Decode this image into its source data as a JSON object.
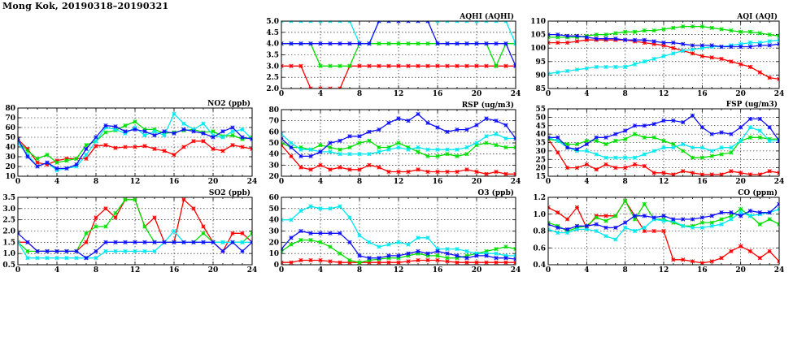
{
  "page": {
    "title": "Mong Kok, 20190318–20190321"
  },
  "series_colors": [
    "#ff0000",
    "#00e000",
    "#00e8f0",
    "#1010ff"
  ],
  "chart_data": [
    {
      "id": "aqhi",
      "type": "line",
      "title": "AQHI (AQHI)",
      "xlim": [
        0,
        24
      ],
      "ylim": [
        2.0,
        5.0
      ],
      "xticks": [
        "0",
        "4",
        "8",
        "12",
        "16",
        "20",
        "24"
      ],
      "yticks": [
        "2.0",
        "2.5",
        "3.0",
        "3.5",
        "4.0",
        "4.5",
        "5.0"
      ],
      "series": [
        {
          "name": "red",
          "values": [
            3,
            3,
            3,
            2,
            2,
            2,
            2,
            3,
            3,
            3,
            3,
            3,
            3,
            3,
            3,
            3,
            3,
            3,
            3,
            3,
            3,
            3,
            3,
            3,
            3
          ]
        },
        {
          "name": "green",
          "values": [
            4,
            4,
            4,
            4,
            3,
            3,
            3,
            3,
            4,
            4,
            4,
            4,
            4,
            4,
            4,
            4,
            4,
            4,
            4,
            4,
            4,
            4,
            3,
            4,
            4
          ]
        },
        {
          "name": "cyan",
          "values": [
            5,
            5,
            5,
            5,
            5,
            5,
            5,
            5,
            4,
            4,
            5,
            5,
            5,
            5,
            5,
            5,
            5,
            5,
            5,
            5,
            5,
            5,
            5,
            5,
            4
          ]
        },
        {
          "name": "blue",
          "values": [
            4,
            4,
            4,
            4,
            4,
            4,
            4,
            4,
            4,
            4,
            5,
            5,
            5,
            5,
            5,
            5,
            4,
            4,
            4,
            4,
            4,
            4,
            4,
            4,
            3
          ]
        }
      ]
    },
    {
      "id": "aqi",
      "type": "line",
      "title": "AQI (AQI)",
      "xlim": [
        0,
        24
      ],
      "ylim": [
        85,
        110
      ],
      "xticks": [
        "0",
        "4",
        "8",
        "12",
        "16",
        "20",
        "24"
      ],
      "yticks": [
        "85",
        "90",
        "95",
        "100",
        "105",
        "110"
      ],
      "series": [
        {
          "name": "red",
          "values": [
            102,
            102,
            102,
            102.5,
            103,
            103,
            103,
            103,
            103,
            102.5,
            102,
            101.5,
            101,
            100,
            99,
            98,
            97,
            96.5,
            96,
            95,
            94,
            93,
            91,
            89,
            88.5
          ]
        },
        {
          "name": "green",
          "values": [
            104,
            104,
            104,
            104,
            104.5,
            105,
            105,
            105.5,
            106,
            106,
            106.5,
            106.5,
            107,
            107.5,
            108,
            108,
            108,
            107.5,
            107,
            106.5,
            106,
            106,
            105.5,
            105,
            104.5
          ]
        },
        {
          "name": "cyan",
          "values": [
            90.5,
            91,
            91.5,
            92,
            92.5,
            93,
            93,
            93,
            93,
            94,
            95,
            96,
            97,
            98,
            99,
            99.5,
            100,
            100.5,
            100.5,
            101,
            101.5,
            102,
            102,
            102.5,
            103
          ]
        },
        {
          "name": "blue",
          "values": [
            105,
            105,
            104.5,
            104.5,
            104,
            103.5,
            103.5,
            103.5,
            103,
            103,
            103,
            102.5,
            102,
            102,
            101.5,
            101,
            101,
            101,
            100.5,
            100.5,
            100.5,
            100.5,
            101,
            101,
            101.5
          ]
        }
      ]
    },
    {
      "id": "no2",
      "type": "line",
      "title": "NO2 (ppb)",
      "xlim": [
        0,
        24
      ],
      "ylim": [
        10,
        80
      ],
      "xticks": [
        "0",
        "4",
        "8",
        "12",
        "16",
        "20",
        "24"
      ],
      "yticks": [
        "10",
        "20",
        "30",
        "40",
        "50",
        "60",
        "70",
        "80"
      ],
      "series": [
        {
          "name": "red",
          "values": [
            48,
            38,
            24,
            22,
            26,
            28,
            28,
            28,
            41,
            42,
            39,
            40,
            40,
            41,
            38,
            36,
            32,
            40,
            46,
            46,
            38,
            36,
            42,
            40,
            38
          ]
        },
        {
          "name": "green",
          "values": [
            46,
            36,
            28,
            32,
            24,
            26,
            28,
            42,
            46,
            55,
            57,
            62,
            66,
            58,
            58,
            54,
            55,
            57,
            58,
            55,
            56,
            51,
            52,
            48,
            50
          ]
        },
        {
          "name": "cyan",
          "values": [
            44,
            32,
            20,
            24,
            16,
            18,
            20,
            32,
            46,
            60,
            58,
            54,
            60,
            52,
            56,
            52,
            74,
            64,
            58,
            64,
            52,
            50,
            56,
            58,
            48
          ]
        },
        {
          "name": "blue",
          "values": [
            48,
            30,
            20,
            24,
            18,
            18,
            22,
            38,
            50,
            62,
            61,
            56,
            58,
            56,
            52,
            56,
            54,
            58,
            56,
            54,
            50,
            56,
            60,
            50,
            48
          ]
        }
      ]
    },
    {
      "id": "rsp",
      "type": "line",
      "title": "RSP (ug/m3)",
      "xlim": [
        0,
        24
      ],
      "ylim": [
        20,
        80
      ],
      "xticks": [
        "0",
        "4",
        "8",
        "12",
        "16",
        "20",
        "24"
      ],
      "yticks": [
        "20",
        "30",
        "40",
        "50",
        "60",
        "70",
        "80"
      ],
      "series": [
        {
          "name": "red",
          "values": [
            48,
            38,
            28,
            26,
            30,
            26,
            28,
            26,
            26,
            30,
            28,
            24,
            24,
            24,
            26,
            24,
            24,
            24,
            24,
            26,
            24,
            22,
            24,
            22,
            22
          ]
        },
        {
          "name": "green",
          "values": [
            50,
            46,
            46,
            44,
            48,
            46,
            44,
            46,
            50,
            52,
            46,
            46,
            50,
            46,
            42,
            38,
            38,
            40,
            38,
            40,
            48,
            50,
            48,
            46,
            46
          ]
        },
        {
          "name": "cyan",
          "values": [
            58,
            50,
            44,
            44,
            42,
            42,
            40,
            40,
            40,
            40,
            42,
            44,
            46,
            44,
            46,
            44,
            44,
            44,
            44,
            46,
            50,
            56,
            58,
            54,
            54
          ]
        },
        {
          "name": "blue",
          "values": [
            54,
            46,
            38,
            38,
            42,
            50,
            52,
            56,
            56,
            60,
            62,
            68,
            72,
            70,
            76,
            68,
            64,
            60,
            62,
            62,
            66,
            72,
            70,
            66,
            54
          ]
        }
      ]
    },
    {
      "id": "fsp",
      "type": "line",
      "title": "FSP (ug/m3)",
      "xlim": [
        0,
        24
      ],
      "ylim": [
        15,
        55
      ],
      "xticks": [
        "0",
        "4",
        "8",
        "12",
        "16",
        "20",
        "24"
      ],
      "yticks": [
        "15",
        "20",
        "25",
        "30",
        "35",
        "40",
        "45",
        "50",
        "55"
      ],
      "series": [
        {
          "name": "red",
          "values": [
            37,
            29,
            20,
            20,
            22,
            19,
            22,
            20,
            20,
            22,
            21,
            17,
            17,
            16,
            18,
            17,
            16,
            16,
            16,
            18,
            17,
            16,
            16,
            18,
            17
          ]
        },
        {
          "name": "green",
          "values": [
            37,
            36,
            34,
            34,
            36,
            36,
            34,
            36,
            37,
            40,
            38,
            38,
            36,
            34,
            30,
            26,
            26,
            27,
            28,
            29,
            36,
            38,
            38,
            37,
            37
          ]
        },
        {
          "name": "cyan",
          "values": [
            38,
            36,
            32,
            30,
            30,
            28,
            26,
            26,
            26,
            26,
            28,
            30,
            32,
            32,
            34,
            32,
            32,
            30,
            32,
            32,
            36,
            44,
            42,
            36,
            36
          ]
        },
        {
          "name": "blue",
          "values": [
            38,
            38,
            32,
            31,
            34,
            38,
            38,
            40,
            42,
            45,
            45,
            46,
            48,
            48,
            47,
            51,
            44,
            40,
            41,
            40,
            44,
            49,
            49,
            44,
            36
          ]
        }
      ]
    },
    {
      "id": "so2",
      "type": "line",
      "title": "SO2 (ppb)",
      "xlim": [
        0,
        24
      ],
      "ylim": [
        0.5,
        3.5
      ],
      "xticks": [
        "0",
        "4",
        "8",
        "12",
        "16",
        "20",
        "24"
      ],
      "yticks": [
        "0.5",
        "1.0",
        "1.5",
        "2.0",
        "2.5",
        "3.0",
        "3.5"
      ],
      "series": [
        {
          "name": "red",
          "values": [
            1.5,
            1.5,
            1.1,
            1.1,
            1.1,
            1.1,
            1.1,
            1.5,
            2.6,
            3.0,
            2.6,
            3.4,
            3.4,
            2.2,
            2.6,
            1.5,
            1.5,
            3.4,
            3.0,
            2.2,
            1.5,
            1.1,
            1.9,
            1.9,
            1.5
          ]
        },
        {
          "name": "green",
          "values": [
            1.5,
            1.1,
            1.1,
            1.1,
            1.1,
            1.1,
            1.1,
            1.9,
            2.2,
            2.2,
            2.8,
            3.4,
            3.4,
            2.2,
            1.5,
            1.5,
            1.5,
            1.5,
            1.5,
            1.9,
            1.5,
            1.5,
            1.5,
            1.5,
            1.9
          ]
        },
        {
          "name": "cyan",
          "values": [
            1.5,
            0.8,
            0.8,
            0.8,
            0.8,
            0.8,
            0.8,
            0.8,
            0.8,
            1.1,
            1.1,
            1.1,
            1.1,
            1.1,
            1.1,
            1.5,
            2.0,
            1.5,
            1.5,
            1.5,
            1.5,
            1.5,
            1.5,
            1.5,
            1.5
          ]
        },
        {
          "name": "blue",
          "values": [
            1.9,
            1.5,
            1.1,
            1.1,
            1.1,
            1.1,
            1.1,
            0.8,
            1.1,
            1.5,
            1.5,
            1.5,
            1.5,
            1.5,
            1.5,
            1.5,
            1.5,
            1.5,
            1.5,
            1.5,
            1.5,
            1.1,
            1.5,
            1.1,
            1.5
          ]
        }
      ]
    },
    {
      "id": "o3",
      "type": "line",
      "title": "O3 (ppb)",
      "xlim": [
        0,
        24
      ],
      "ylim": [
        0,
        60
      ],
      "xticks": [
        "0",
        "4",
        "8",
        "12",
        "16",
        "20",
        "24"
      ],
      "yticks": [
        "0",
        "10",
        "20",
        "30",
        "40",
        "50",
        "60"
      ],
      "series": [
        {
          "name": "red",
          "values": [
            2,
            2,
            4,
            4,
            4,
            3,
            2,
            2,
            2,
            2,
            2,
            2,
            2,
            3,
            4,
            4,
            4,
            3,
            2,
            2,
            2,
            2,
            2,
            2,
            2
          ]
        },
        {
          "name": "green",
          "values": [
            12,
            18,
            22,
            22,
            20,
            16,
            10,
            4,
            2,
            4,
            5,
            6,
            6,
            8,
            10,
            8,
            8,
            6,
            6,
            8,
            10,
            12,
            14,
            16,
            14
          ]
        },
        {
          "name": "cyan",
          "values": [
            40,
            40,
            48,
            52,
            50,
            50,
            52,
            42,
            26,
            20,
            16,
            18,
            20,
            18,
            24,
            24,
            14,
            14,
            14,
            12,
            10,
            10,
            10,
            8,
            8
          ]
        },
        {
          "name": "blue",
          "values": [
            14,
            24,
            30,
            28,
            28,
            28,
            28,
            20,
            8,
            6,
            6,
            8,
            8,
            10,
            12,
            10,
            12,
            10,
            8,
            6,
            8,
            8,
            6,
            6,
            5
          ]
        }
      ]
    },
    {
      "id": "co",
      "type": "line",
      "title": "CO (ppm)",
      "xlim": [
        0,
        24
      ],
      "ylim": [
        0.4,
        1.2
      ],
      "xticks": [
        "0",
        "4",
        "8",
        "12",
        "16",
        "20",
        "24"
      ],
      "yticks": [
        "0.4",
        "0.6",
        "0.8",
        "1.0",
        "1.2"
      ],
      "series": [
        {
          "name": "red",
          "values": [
            1.08,
            1.02,
            0.94,
            1.08,
            0.84,
            0.98,
            0.98,
            0.98,
            1.16,
            0.98,
            0.8,
            0.8,
            0.8,
            0.46,
            0.46,
            0.44,
            0.42,
            0.44,
            0.48,
            0.56,
            0.62,
            0.56,
            0.48,
            0.56,
            0.44
          ]
        },
        {
          "name": "green",
          "values": [
            0.9,
            0.86,
            0.8,
            0.84,
            0.86,
            0.96,
            0.92,
            0.98,
            1.16,
            0.94,
            1.12,
            0.94,
            0.94,
            0.9,
            0.86,
            0.86,
            0.9,
            0.9,
            0.94,
            0.98,
            1.06,
            0.98,
            0.88,
            0.94,
            0.88
          ]
        },
        {
          "name": "cyan",
          "values": [
            0.82,
            0.78,
            0.78,
            0.82,
            0.82,
            0.8,
            0.74,
            0.7,
            0.84,
            0.8,
            0.84,
            0.94,
            0.92,
            0.92,
            0.86,
            0.84,
            0.84,
            0.86,
            0.88,
            0.94,
            1.02,
            0.98,
            1.0,
            1.02,
            1.06
          ]
        },
        {
          "name": "blue",
          "values": [
            0.88,
            0.84,
            0.82,
            0.86,
            0.86,
            0.88,
            0.84,
            0.84,
            0.9,
            0.98,
            0.98,
            0.96,
            0.98,
            0.94,
            0.94,
            0.94,
            0.96,
            0.98,
            1.02,
            1.02,
            0.98,
            1.04,
            1.02,
            1.02,
            1.12
          ]
        }
      ]
    }
  ]
}
